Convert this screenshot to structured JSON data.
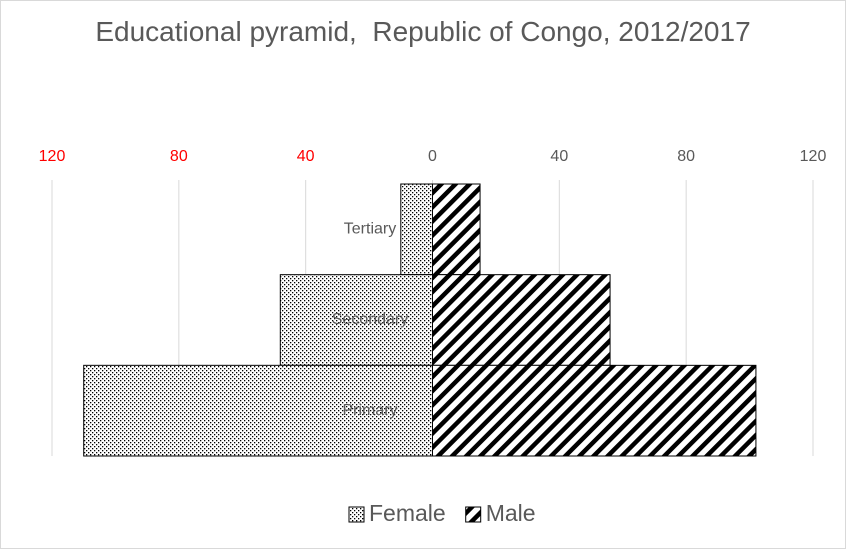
{
  "chart_data": {
    "type": "pyramid",
    "title": "Educational pyramid,  Republic of Congo, 2012/2017",
    "categories": [
      "Tertiary",
      "Secondary",
      "Primary"
    ],
    "series": [
      {
        "name": "Female",
        "color": "#000000",
        "pattern": "dots",
        "values": [
          -10,
          -48,
          -110
        ]
      },
      {
        "name": "Male",
        "color": "#000000",
        "pattern": "stripes",
        "values": [
          15,
          56,
          102
        ]
      }
    ],
    "xlim": [
      -120,
      120
    ],
    "xticks": [
      {
        "value": -120,
        "label": "120"
      },
      {
        "value": -80,
        "label": "80"
      },
      {
        "value": -40,
        "label": "40"
      },
      0,
      40,
      80,
      120
    ],
    "negative_tick_label_color": "#ff0000",
    "grid": true,
    "legend": "bottom"
  }
}
